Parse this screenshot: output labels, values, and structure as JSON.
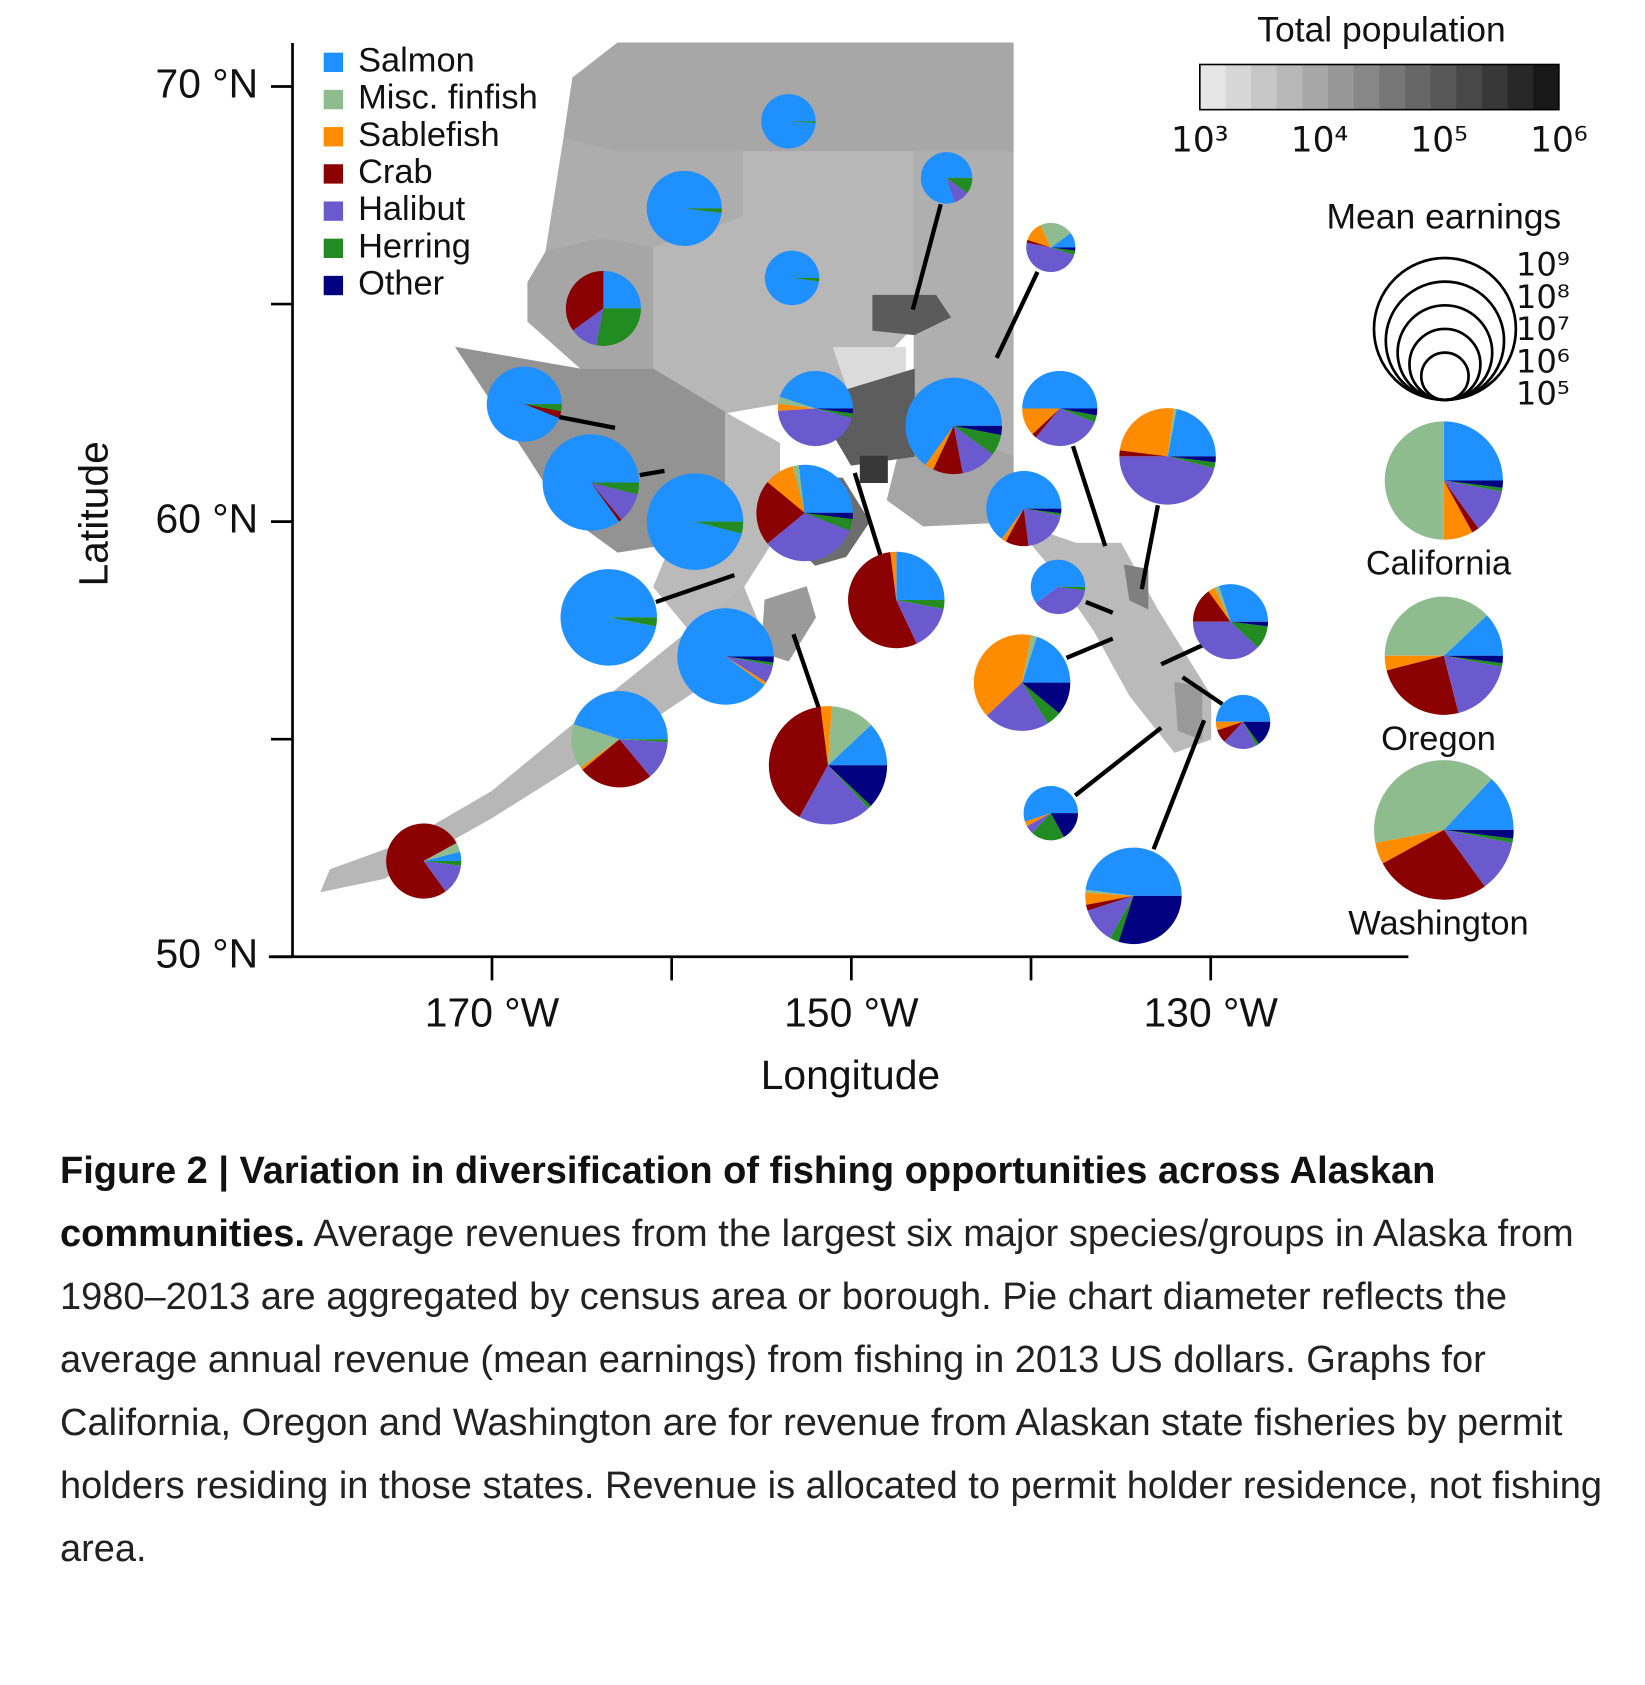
{
  "chart_data": {
    "type": "map",
    "xlabel": "Longitude",
    "ylabel": "Latitude",
    "xlim": [
      -181.1,
      -119
    ],
    "ylim": [
      50,
      71
    ],
    "xticks": [
      {
        "value": -170,
        "label": "170 °W"
      },
      {
        "value": -160,
        "label": null
      },
      {
        "value": -150,
        "label": "150 °W"
      },
      {
        "value": -140,
        "label": null
      },
      {
        "value": -130,
        "label": "130 °W"
      }
    ],
    "yticks": [
      {
        "value": 50,
        "label": "50 °N"
      },
      {
        "value": 55,
        "label": null
      },
      {
        "value": 60,
        "label": "60 °N"
      },
      {
        "value": 65,
        "label": null
      },
      {
        "value": 70,
        "label": "70 °N"
      }
    ],
    "series": [
      {
        "name": "Salmon",
        "color": "#1e90ff"
      },
      {
        "name": "Misc. finfish",
        "color": "#8fbc8f"
      },
      {
        "name": "Sablefish",
        "color": "#ff8c00"
      },
      {
        "name": "Crab",
        "color": "#8b0000"
      },
      {
        "name": "Halibut",
        "color": "#6a5acd"
      },
      {
        "name": "Herring",
        "color": "#228b22"
      },
      {
        "name": "Other",
        "color": "#000080"
      }
    ],
    "population_legend": {
      "title": "Total population",
      "lim": [
        1000,
        1000000
      ],
      "ticks": [
        {
          "value": 1000,
          "label": "10³"
        },
        {
          "value": 10000,
          "label": "10⁴"
        },
        {
          "value": 100000,
          "label": "10⁵"
        },
        {
          "value": 1000000,
          "label": "10⁶"
        }
      ]
    },
    "earnings_legend": {
      "title": "Mean earnings",
      "ticks": [
        {
          "value": 1000000000,
          "label": "10⁹"
        },
        {
          "value": 100000000,
          "label": "10⁸"
        },
        {
          "value": 10000000,
          "label": "10⁷"
        },
        {
          "value": 1000000,
          "label": "10⁶"
        },
        {
          "value": 100000,
          "label": "10⁵"
        }
      ]
    },
    "regions": [
      {
        "population": 9000,
        "boundary": [
          [
            -165.5,
            70.2
          ],
          [
            -163,
            71
          ],
          [
            -141,
            71
          ],
          [
            -141,
            68.5
          ],
          [
            -156,
            68.5
          ],
          [
            -163,
            68.5
          ],
          [
            -166,
            68.8
          ]
        ]
      },
      {
        "population": 7500,
        "boundary": [
          [
            -166,
            68.8
          ],
          [
            -163,
            68.5
          ],
          [
            -156,
            68.5
          ],
          [
            -156,
            67
          ],
          [
            -161,
            66.3
          ],
          [
            -164,
            66.5
          ],
          [
            -167,
            66.2
          ]
        ]
      },
      {
        "population": 9500,
        "boundary": [
          [
            -167,
            66.2
          ],
          [
            -164,
            66.5
          ],
          [
            -161,
            66.3
          ],
          [
            -161,
            63.5
          ],
          [
            -165,
            63.5
          ],
          [
            -168,
            64.6
          ],
          [
            -168,
            65.5
          ]
        ]
      },
      {
        "population": 5600,
        "boundary": [
          [
            -161,
            66.3
          ],
          [
            -156,
            67
          ],
          [
            -156,
            68.5
          ],
          [
            -146.5,
            68.5
          ],
          [
            -146.5,
            64.5
          ],
          [
            -150,
            63
          ],
          [
            -157,
            62.5
          ],
          [
            -161,
            63.5
          ]
        ]
      },
      {
        "population": 7000,
        "boundary": [
          [
            -146.5,
            68.5
          ],
          [
            -141,
            68.5
          ],
          [
            -141,
            61.5
          ],
          [
            -143,
            61.8
          ],
          [
            -146.5,
            63
          ],
          [
            -146.5,
            64.5
          ]
        ]
      },
      {
        "population": 1800,
        "boundary": [
          [
            -151,
            64
          ],
          [
            -147,
            64
          ],
          [
            -147,
            63.2
          ],
          [
            -150,
            62.8
          ]
        ]
      },
      {
        "population": 97000,
        "boundary": [
          [
            -148.8,
            65.2
          ],
          [
            -145.3,
            65.2
          ],
          [
            -144.5,
            64.7
          ],
          [
            -146.5,
            64.3
          ],
          [
            -148.8,
            64.4
          ]
        ]
      },
      {
        "population": 17000,
        "boundary": [
          [
            -172,
            64
          ],
          [
            -165,
            63.5
          ],
          [
            -161,
            63.5
          ],
          [
            -157,
            62.5
          ],
          [
            -157,
            60.5
          ],
          [
            -160,
            59.5
          ],
          [
            -163,
            59.3
          ],
          [
            -166,
            60.2
          ],
          [
            -168,
            61.5
          ]
        ]
      },
      {
        "population": 5000,
        "boundary": [
          [
            -160,
            59.5
          ],
          [
            -157,
            60.5
          ],
          [
            -157,
            62.5
          ],
          [
            -154,
            61.8
          ],
          [
            -154,
            59.8
          ],
          [
            -156,
            58.5
          ],
          [
            -159,
            57.5
          ],
          [
            -161,
            58.5
          ]
        ]
      },
      {
        "population": 9600,
        "boundary": [
          [
            -146.5,
            63
          ],
          [
            -143,
            61.8
          ],
          [
            -141,
            61.5
          ],
          [
            -141,
            60
          ],
          [
            -146,
            59.9
          ],
          [
            -148,
            60.5
          ]
        ]
      },
      {
        "population": 90000,
        "boundary": [
          [
            -150.5,
            63
          ],
          [
            -146.5,
            63.5
          ],
          [
            -146.5,
            61.5
          ],
          [
            -150,
            61.3
          ],
          [
            -151,
            62
          ]
        ]
      },
      {
        "population": 290000,
        "boundary": [
          [
            -149.5,
            61.5
          ],
          [
            -148,
            61.5
          ],
          [
            -148,
            60.9
          ],
          [
            -149.5,
            60.9
          ]
        ]
      },
      {
        "population": 55000,
        "boundary": [
          [
            -154,
            61
          ],
          [
            -150.5,
            61
          ],
          [
            -149,
            60
          ],
          [
            -150.3,
            59.2
          ],
          [
            -152,
            59
          ],
          [
            -154,
            59.8
          ]
        ]
      },
      {
        "population": 5500,
        "boundary": [
          [
            -165,
            55.5
          ],
          [
            -162,
            56.5
          ],
          [
            -159,
            57.5
          ],
          [
            -156,
            58.5
          ],
          [
            -155,
            57.5
          ],
          [
            -158,
            56.3
          ],
          [
            -162,
            55.2
          ],
          [
            -165,
            54.5
          ],
          [
            -170,
            53.2
          ],
          [
            -176,
            51.8
          ],
          [
            -179.5,
            51.5
          ],
          [
            -179,
            52
          ],
          [
            -175,
            52.6
          ],
          [
            -170,
            53.8
          ]
        ]
      },
      {
        "population": 13600,
        "boundary": [
          [
            -154.8,
            58.2
          ],
          [
            -152.5,
            58.5
          ],
          [
            -152,
            57.8
          ],
          [
            -153.5,
            56.8
          ],
          [
            -155,
            57
          ]
        ]
      },
      {
        "population": 5000,
        "boundary": [
          [
            -141,
            60
          ],
          [
            -137.5,
            59.5
          ],
          [
            -135,
            59.5
          ],
          [
            -133,
            58
          ],
          [
            -131.5,
            57
          ],
          [
            -130,
            56
          ],
          [
            -130,
            55
          ],
          [
            -132,
            54.7
          ],
          [
            -134.5,
            56
          ],
          [
            -136.5,
            57.5
          ],
          [
            -139,
            59
          ]
        ]
      },
      {
        "population": 32000,
        "boundary": [
          [
            -134.8,
            59
          ],
          [
            -133.5,
            58.9
          ],
          [
            -133.5,
            58
          ],
          [
            -134.5,
            58.2
          ]
        ]
      },
      {
        "population": 14000,
        "boundary": [
          [
            -132,
            56.3
          ],
          [
            -130.5,
            56.2
          ],
          [
            -130.5,
            55
          ],
          [
            -131.8,
            55.2
          ]
        ]
      }
    ],
    "pies": [
      {
        "x": -153.5,
        "y": 69.2,
        "earnings": 200000,
        "values": [
          99,
          0,
          0,
          0,
          0,
          1,
          0
        ]
      },
      {
        "x": -159.3,
        "y": 67.2,
        "earnings": 1500000,
        "values": [
          98,
          0,
          0,
          0,
          0,
          2,
          0
        ]
      },
      {
        "x": -153.3,
        "y": 65.6,
        "earnings": 200000,
        "values": [
          98,
          0,
          0,
          0,
          0,
          2,
          0
        ]
      },
      {
        "x": -144.7,
        "y": 67.9,
        "earnings": 150000,
        "values": [
          80,
          0,
          0,
          0,
          10,
          10,
          0
        ]
      },
      {
        "x": -138.9,
        "y": 66.3,
        "earnings": 120000,
        "values": [
          10,
          22,
          13,
          2,
          48,
          3,
          2
        ]
      },
      {
        "x": -163.8,
        "y": 64.9,
        "earnings": 1500000,
        "values": [
          25,
          0,
          0,
          35,
          12,
          28,
          0
        ]
      },
      {
        "x": -168.2,
        "y": 62.7,
        "earnings": 1500000,
        "values": [
          94,
          0,
          0,
          3,
          0,
          3,
          0
        ]
      },
      {
        "x": -164.5,
        "y": 60.9,
        "earnings": 12000000,
        "values": [
          85,
          0,
          0,
          1,
          10,
          4,
          0
        ]
      },
      {
        "x": -158.7,
        "y": 60.0,
        "earnings": 12000000,
        "values": [
          96,
          0,
          0,
          0,
          0,
          4,
          0
        ]
      },
      {
        "x": -152.0,
        "y": 62.6,
        "earnings": 1500000,
        "values": [
          45,
          3,
          3,
          0,
          45,
          2,
          2
        ]
      },
      {
        "x": -152.6,
        "y": 60.2,
        "earnings": 12000000,
        "values": [
          27,
          2,
          10,
          22,
          33,
          4,
          2
        ]
      },
      {
        "x": -144.3,
        "y": 62.2,
        "earnings": 12000000,
        "values": [
          65,
          0,
          3,
          10,
          12,
          7,
          3
        ]
      },
      {
        "x": -147.5,
        "y": 58.2,
        "earnings": 12000000,
        "values": [
          25,
          0,
          2,
          55,
          15,
          3,
          0
        ]
      },
      {
        "x": -163.5,
        "y": 57.8,
        "earnings": 12000000,
        "values": [
          97,
          0,
          0,
          0,
          0,
          3,
          0
        ]
      },
      {
        "x": -157.0,
        "y": 56.9,
        "earnings": 12000000,
        "values": [
          90,
          0,
          1,
          0,
          6,
          1,
          2
        ]
      },
      {
        "x": -140.4,
        "y": 60.3,
        "earnings": 1500000,
        "values": [
          65,
          0,
          2,
          10,
          20,
          1,
          2
        ]
      },
      {
        "x": -138.4,
        "y": 62.6,
        "earnings": 1500000,
        "values": [
          50,
          0,
          12,
          2,
          30,
          3,
          3
        ]
      },
      {
        "x": -132.4,
        "y": 61.5,
        "earnings": 12000000,
        "values": [
          22,
          1,
          25,
          2,
          46,
          2,
          2
        ]
      },
      {
        "x": -138.5,
        "y": 58.5,
        "earnings": 200000,
        "values": [
          60,
          0,
          0,
          0,
          38,
          2,
          0
        ]
      },
      {
        "x": -128.9,
        "y": 57.7,
        "earnings": 1500000,
        "values": [
          30,
          2,
          3,
          15,
          38,
          10,
          2
        ]
      },
      {
        "x": -140.5,
        "y": 56.3,
        "earnings": 12000000,
        "values": [
          20,
          2,
          40,
          0,
          22,
          5,
          11
        ]
      },
      {
        "x": -128.2,
        "y": 55.4,
        "earnings": 200000,
        "values": [
          50,
          0,
          5,
          8,
          20,
          2,
          15
        ]
      },
      {
        "x": -162.9,
        "y": 55.0,
        "earnings": 12000000,
        "values": [
          45,
          15,
          1,
          25,
          13,
          1,
          0
        ]
      },
      {
        "x": -151.3,
        "y": 54.4,
        "earnings": 100000000,
        "values": [
          12,
          12,
          3,
          40,
          20,
          1,
          12
        ]
      },
      {
        "x": -138.9,
        "y": 53.3,
        "earnings": 200000,
        "values": [
          55,
          0,
          3,
          0,
          5,
          20,
          17
        ]
      },
      {
        "x": -134.3,
        "y": 51.4,
        "earnings": 12000000,
        "values": [
          48,
          1,
          4,
          2,
          12,
          3,
          30
        ]
      },
      {
        "x": -173.8,
        "y": 52.2,
        "earnings": 1500000,
        "values": [
          4,
          4,
          0,
          77,
          13,
          2,
          0
        ]
      }
    ],
    "state_pies": [
      {
        "name": "California",
        "earnings": 100000000,
        "values": [
          25,
          50,
          8,
          2,
          12,
          1,
          2
        ]
      },
      {
        "name": "Oregon",
        "earnings": 100000000,
        "values": [
          12,
          38,
          4,
          25,
          18,
          1,
          2
        ]
      },
      {
        "name": "Washington",
        "earnings": 800000000,
        "values": [
          13,
          40,
          5,
          27,
          12,
          1,
          2
        ]
      }
    ]
  },
  "caption": {
    "title": "Figure 2 | Variation in diversification of fishing opportunities across Alaskan communities.",
    "text": "Average revenues from the largest six major species/groups in Alaska from 1980–2013 are aggregated by census area or borough. Pie chart diameter reflects the average annual revenue (mean earnings) from fishing in 2013 US dollars. Graphs for California, Oregon and Washington are for revenue from Alaskan state fisheries by permit holders residing in those states. Revenue is allocated to permit holder residence, not fishing area."
  }
}
